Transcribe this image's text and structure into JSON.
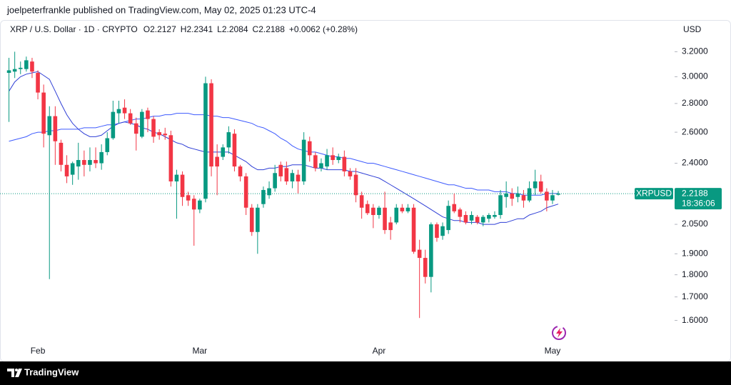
{
  "header": {
    "text": "joelpeterfrankle published on TradingView.com, May 02, 2025 01:23 UTC-4"
  },
  "chart_data": {
    "type": "candlestick",
    "title": "XRP / U.S. Dollar · 1D · CRYPTO",
    "ohlc_prefixes": [
      "O",
      "H",
      "L",
      "C"
    ],
    "change": "+0.0062 (+0.28%)",
    "currency": "USD",
    "symbol": "XRPUSD",
    "countdown": "18:36:06",
    "categories": [
      null,
      null,
      null,
      null,
      null,
      "Feb",
      null,
      null,
      null,
      null,
      null,
      null,
      null,
      null,
      null,
      null,
      null,
      null,
      null,
      null,
      null,
      null,
      null,
      null,
      null,
      null,
      null,
      null,
      null,
      null,
      null,
      null,
      null,
      "Mar",
      null,
      null,
      null,
      null,
      null,
      null,
      null,
      null,
      null,
      null,
      null,
      null,
      null,
      null,
      null,
      null,
      null,
      null,
      null,
      null,
      null,
      null,
      null,
      null,
      null,
      null,
      null,
      null,
      null,
      null,
      "Apr",
      null,
      null,
      null,
      null,
      null,
      null,
      null,
      null,
      null,
      null,
      null,
      null,
      null,
      null,
      null,
      null,
      null,
      null,
      null,
      null,
      null,
      null,
      null,
      null,
      null,
      null,
      null,
      null,
      null,
      "May",
      null
    ],
    "open": [
      3.03,
      3.04,
      3.06,
      3.06,
      3.12,
      3.03,
      2.88,
      2.58,
      2.71,
      2.53,
      2.39,
      2.33,
      2.38,
      2.42,
      2.39,
      2.42,
      2.4,
      2.47,
      2.56,
      2.73,
      2.77,
      2.73,
      2.66,
      2.57,
      2.75,
      2.69,
      2.6,
      2.59,
      2.58,
      2.29,
      2.33,
      2.21,
      2.19,
      2.13,
      2.19,
      2.95,
      2.44,
      2.44,
      2.5,
      2.59,
      2.38,
      2.32,
      2.14,
      2.01,
      2.16,
      2.21,
      2.25,
      2.39,
      2.37,
      2.29,
      2.33,
      2.29,
      2.54,
      2.45,
      2.37,
      2.38,
      2.45,
      2.42,
      2.44,
      2.35,
      2.33,
      2.21,
      2.16,
      2.14,
      2.1,
      2.14,
      2.06,
      2.06,
      2.14,
      2.12,
      2.14,
      1.92,
      1.88,
      1.79,
      2.05,
      1.99,
      2.02,
      2.16,
      2.13,
      2.1,
      2.07,
      2.09,
      2.06,
      2.08,
      2.09,
      2.1,
      2.2,
      2.22,
      2.2,
      2.21,
      2.18,
      2.25,
      2.29,
      2.23,
      2.18,
      2.2127
    ],
    "high": [
      3.15,
      3.2,
      3.12,
      3.16,
      3.15,
      3.05,
      2.94,
      2.78,
      2.78,
      2.55,
      2.45,
      2.41,
      2.53,
      2.48,
      2.5,
      2.5,
      2.52,
      2.6,
      2.82,
      2.82,
      2.83,
      2.76,
      2.7,
      2.76,
      2.77,
      2.71,
      2.62,
      2.63,
      2.61,
      2.36,
      2.35,
      2.23,
      2.21,
      2.19,
      3.0,
      2.98,
      2.52,
      2.52,
      2.64,
      2.62,
      2.39,
      2.34,
      2.16,
      2.16,
      2.26,
      2.29,
      2.39,
      2.41,
      2.41,
      2.36,
      2.36,
      2.6,
      2.57,
      2.47,
      2.43,
      2.49,
      2.5,
      2.46,
      2.48,
      2.37,
      2.37,
      2.23,
      2.18,
      2.16,
      2.15,
      2.23,
      2.09,
      2.16,
      2.16,
      2.16,
      2.16,
      1.97,
      1.92,
      2.06,
      2.06,
      2.06,
      2.18,
      2.22,
      2.14,
      2.12,
      2.12,
      2.1,
      2.1,
      2.11,
      2.12,
      2.24,
      2.29,
      2.25,
      2.26,
      2.24,
      2.29,
      2.36,
      2.33,
      2.25,
      2.24,
      2.2341
    ],
    "low": [
      2.67,
      2.99,
      3.02,
      3.04,
      2.99,
      2.83,
      2.5,
      1.78,
      2.39,
      2.35,
      2.28,
      2.27,
      2.3,
      2.32,
      2.35,
      2.37,
      2.36,
      2.45,
      2.55,
      2.66,
      2.69,
      2.65,
      2.48,
      2.56,
      2.6,
      2.53,
      2.55,
      2.55,
      2.26,
      2.08,
      2.15,
      2.15,
      1.94,
      2.11,
      2.17,
      2.32,
      2.21,
      2.42,
      2.46,
      2.35,
      2.29,
      2.1,
      1.99,
      1.9,
      2.14,
      2.19,
      2.23,
      2.29,
      2.27,
      2.25,
      2.22,
      2.27,
      2.41,
      2.35,
      2.35,
      2.36,
      2.39,
      2.4,
      2.32,
      2.3,
      2.17,
      2.08,
      2.1,
      2.03,
      2.08,
      2.0,
      1.97,
      2.05,
      2.11,
      2.11,
      1.9,
      1.61,
      1.76,
      1.72,
      1.96,
      1.97,
      2.0,
      2.11,
      2.06,
      2.05,
      2.05,
      2.05,
      2.04,
      2.06,
      2.08,
      2.08,
      2.14,
      2.15,
      2.17,
      2.14,
      2.17,
      2.21,
      2.22,
      2.12,
      2.16,
      2.2084
    ],
    "close": [
      3.05,
      3.06,
      3.07,
      3.13,
      3.04,
      2.88,
      2.59,
      2.71,
      2.54,
      2.39,
      2.32,
      2.4,
      2.42,
      2.39,
      2.42,
      2.4,
      2.47,
      2.56,
      2.74,
      2.76,
      2.73,
      2.66,
      2.59,
      2.74,
      2.69,
      2.57,
      2.58,
      2.58,
      2.29,
      2.33,
      2.2,
      2.18,
      2.13,
      2.18,
      2.95,
      2.38,
      2.38,
      2.5,
      2.6,
      2.38,
      2.32,
      2.14,
      2.01,
      2.14,
      2.24,
      2.25,
      2.34,
      2.32,
      2.29,
      2.34,
      2.29,
      2.55,
      2.45,
      2.37,
      2.4,
      2.45,
      2.42,
      2.44,
      2.35,
      2.32,
      2.21,
      2.14,
      2.11,
      2.1,
      2.14,
      2.02,
      2.02,
      2.14,
      2.12,
      2.14,
      1.91,
      1.88,
      1.79,
      2.05,
      1.98,
      2.04,
      2.15,
      2.12,
      2.09,
      2.06,
      2.1,
      2.06,
      2.09,
      2.1,
      2.1,
      2.21,
      2.22,
      2.19,
      2.22,
      2.18,
      2.25,
      2.29,
      2.23,
      2.18,
      2.21,
      2.2188
    ],
    "up_color": "#089981",
    "down_color": "#f23645",
    "log_scale": true,
    "grid": false,
    "ylim": [
      1.51,
      3.46
    ],
    "yticks": [
      {
        "value": 3.2,
        "label": "3.2000"
      },
      {
        "value": 3.0,
        "label": "3.0000"
      },
      {
        "value": 2.8,
        "label": "2.8000"
      },
      {
        "value": 2.6,
        "label": "2.6000"
      },
      {
        "value": 2.4,
        "label": "2.4000"
      },
      {
        "value": 2.05,
        "label": "2.0500"
      },
      {
        "value": 1.9,
        "label": "1.9000"
      },
      {
        "value": 1.8,
        "label": "1.8000"
      },
      {
        "value": 1.7,
        "label": "1.7000"
      },
      {
        "value": 1.6,
        "label": "1.6000"
      }
    ],
    "lines": [
      {
        "color": "#3d5afe",
        "values": [
          2.54,
          2.55,
          2.56,
          2.57,
          2.59,
          2.6,
          2.6,
          2.61,
          2.61,
          2.62,
          2.62,
          2.62,
          2.62,
          2.63,
          2.63,
          2.63,
          2.64,
          2.65,
          2.65,
          2.66,
          2.67,
          2.68,
          2.69,
          2.69,
          2.7,
          2.71,
          2.71,
          2.72,
          2.72,
          2.73,
          2.73,
          2.73,
          2.72,
          2.72,
          2.72,
          2.71,
          2.71,
          2.7,
          2.7,
          2.69,
          2.68,
          2.67,
          2.66,
          2.64,
          2.63,
          2.61,
          2.59,
          2.56,
          2.54,
          2.51,
          2.49,
          2.48,
          2.47,
          2.47,
          2.46,
          2.45,
          2.44,
          2.44,
          2.43,
          2.43,
          2.42,
          2.41,
          2.4,
          2.4,
          2.39,
          2.38,
          2.37,
          2.36,
          2.35,
          2.34,
          2.33,
          2.32,
          2.31,
          2.3,
          2.29,
          2.28,
          2.27,
          2.27,
          2.26,
          2.25,
          2.25,
          2.24,
          2.24,
          2.24,
          2.23,
          2.23,
          2.23,
          2.22,
          2.22,
          2.21,
          2.21,
          2.21,
          2.21,
          2.22,
          2.22,
          2.22
        ]
      },
      {
        "color": "#2f3fd6",
        "values": [
          2.89,
          2.96,
          3.0,
          3.02,
          3.03,
          3.04,
          3.01,
          2.98,
          2.89,
          2.8,
          2.72,
          2.66,
          2.62,
          2.59,
          2.57,
          2.57,
          2.58,
          2.61,
          2.64,
          2.66,
          2.67,
          2.66,
          2.65,
          2.63,
          2.62,
          2.6,
          2.59,
          2.57,
          2.55,
          2.53,
          2.52,
          2.5,
          2.49,
          2.48,
          2.47,
          2.47,
          2.47,
          2.47,
          2.47,
          2.45,
          2.43,
          2.41,
          2.38,
          2.36,
          2.36,
          2.37,
          2.37,
          2.38,
          2.38,
          2.39,
          2.39,
          2.39,
          2.38,
          2.37,
          2.37,
          2.36,
          2.36,
          2.36,
          2.36,
          2.35,
          2.35,
          2.34,
          2.33,
          2.32,
          2.31,
          2.29,
          2.27,
          2.25,
          2.23,
          2.21,
          2.19,
          2.17,
          2.15,
          2.13,
          2.11,
          2.09,
          2.08,
          2.07,
          2.07,
          2.06,
          2.06,
          2.06,
          2.05,
          2.05,
          2.05,
          2.06,
          2.06,
          2.07,
          2.08,
          2.08,
          2.1,
          2.11,
          2.12,
          2.14,
          2.15,
          2.16
        ]
      }
    ]
  },
  "footer": {
    "brand": "TradingView"
  }
}
